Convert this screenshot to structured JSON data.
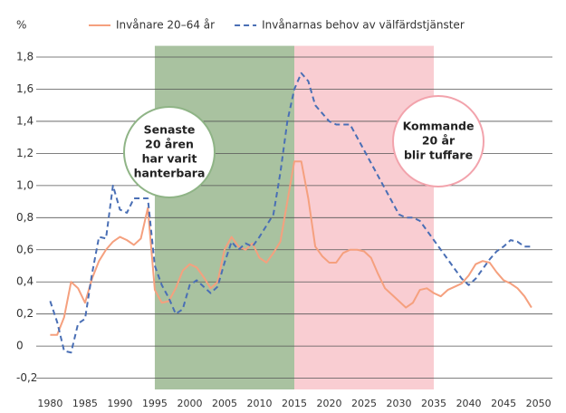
{
  "chart_data": {
    "type": "line",
    "ylabel": "%",
    "x": [
      1980,
      1981,
      1982,
      1983,
      1984,
      1985,
      1986,
      1987,
      1988,
      1989,
      1990,
      1991,
      1992,
      1993,
      1994,
      1995,
      1996,
      1997,
      1998,
      1999,
      2000,
      2001,
      2002,
      2003,
      2004,
      2005,
      2006,
      2007,
      2008,
      2009,
      2010,
      2011,
      2012,
      2013,
      2014,
      2015,
      2016,
      2017,
      2018,
      2019,
      2020,
      2021,
      2022,
      2023,
      2024,
      2025,
      2026,
      2027,
      2028,
      2029,
      2030,
      2031,
      2032,
      2033,
      2034,
      2035,
      2036,
      2037,
      2038,
      2039,
      2040,
      2041,
      2042,
      2043,
      2044,
      2045,
      2046,
      2047,
      2048,
      2049
    ],
    "series": [
      {
        "name": "Invånare 20–64 år",
        "color": "#f5a07e",
        "dash": false,
        "values": [
          0.07,
          0.07,
          0.18,
          0.4,
          0.36,
          0.27,
          0.42,
          0.53,
          0.6,
          0.65,
          0.68,
          0.66,
          0.63,
          0.67,
          0.86,
          0.35,
          0.27,
          0.28,
          0.36,
          0.47,
          0.51,
          0.49,
          0.43,
          0.36,
          0.4,
          0.6,
          0.68,
          0.62,
          0.6,
          0.64,
          0.55,
          0.52,
          0.58,
          0.65,
          0.9,
          1.15,
          1.15,
          0.92,
          0.62,
          0.56,
          0.52,
          0.52,
          0.58,
          0.6,
          0.6,
          0.59,
          0.55,
          0.45,
          0.36,
          0.32,
          0.28,
          0.24,
          0.27,
          0.35,
          0.36,
          0.33,
          0.31,
          0.35,
          0.37,
          0.39,
          0.44,
          0.51,
          0.53,
          0.52,
          0.46,
          0.41,
          0.39,
          0.36,
          0.31,
          0.24
        ]
      },
      {
        "name": "Invånarnas behov av välfärdstjänster",
        "color": "#4a6fb5",
        "dash": true,
        "values": [
          0.28,
          0.15,
          -0.03,
          -0.04,
          0.14,
          0.17,
          0.45,
          0.68,
          0.67,
          1.0,
          0.85,
          0.83,
          0.92,
          0.92,
          0.92,
          0.5,
          0.38,
          0.3,
          0.2,
          0.23,
          0.38,
          0.41,
          0.37,
          0.33,
          0.37,
          0.52,
          0.65,
          0.6,
          0.64,
          0.62,
          0.68,
          0.75,
          0.82,
          1.08,
          1.4,
          1.6,
          1.7,
          1.65,
          1.5,
          1.45,
          1.4,
          1.38,
          1.38,
          1.38,
          1.3,
          1.22,
          1.14,
          1.06,
          0.98,
          0.9,
          0.82,
          0.8,
          0.8,
          0.78,
          0.72,
          0.66,
          0.6,
          0.54,
          0.48,
          0.42,
          0.38,
          0.42,
          0.48,
          0.54,
          0.59,
          0.62,
          0.66,
          0.65,
          0.62,
          0.62
        ]
      }
    ],
    "xlim": [
      1978,
      2052
    ],
    "xticks": [
      1980,
      1985,
      1990,
      1995,
      2000,
      2005,
      2010,
      2015,
      2020,
      2025,
      2030,
      2035,
      2040,
      2045,
      2050
    ],
    "ylim": [
      -0.27,
      1.87
    ],
    "yticks": [
      {
        "value": -0.2,
        "label": "-0,2"
      },
      0,
      {
        "value": 0.2,
        "label": "0,2"
      },
      {
        "value": 0.4,
        "label": "0,4"
      },
      {
        "value": 0.6,
        "label": "0,6"
      },
      {
        "value": 0.8,
        "label": "0,8"
      },
      {
        "value": 1.0,
        "label": "1,0"
      },
      {
        "value": 1.2,
        "label": "1,2"
      },
      {
        "value": 1.4,
        "label": "1,4"
      },
      {
        "value": 1.6,
        "label": "1,6"
      },
      {
        "value": 1.8,
        "label": "1,8"
      }
    ],
    "grid": true,
    "legend": "top",
    "regions": [
      {
        "start": 1995,
        "end": 2015,
        "color": "#a9c2a0",
        "border": "#8fb486",
        "label": [
          "Senaste",
          "20 åren",
          "har varit",
          "hanterbara"
        ]
      },
      {
        "start": 2015,
        "end": 2035,
        "color": "#f9cdd2",
        "border": "#f2a3ac",
        "label": [
          "Kommande",
          "20 år",
          "blir tuffare"
        ]
      }
    ]
  }
}
